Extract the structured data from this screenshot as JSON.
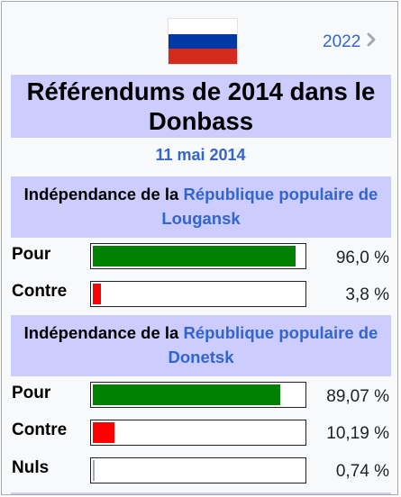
{
  "header": {
    "flag_icon": "russia-flag-icon",
    "flag_colors": [
      "#ffffff",
      "#0039a6",
      "#d52b1e"
    ],
    "next_link": "2022",
    "title": "Référendums de 2014 dans le Donbass",
    "date": "11 mai 2014"
  },
  "colors": {
    "header_bg": "#ccccff",
    "link": "#3366cc",
    "yes_bar": "#008000",
    "no_bar": "#ff0000"
  },
  "sections": [
    {
      "heading_prefix": "Indépendance de la ",
      "heading_link": "République populaire de Lougansk",
      "rows": [
        {
          "label": "Pour",
          "value": "96,0 %",
          "percent": 96.0,
          "color": "#008000"
        },
        {
          "label": "Contre",
          "value": "3,8 %",
          "percent": 3.8,
          "color": "#ff0000"
        }
      ]
    },
    {
      "heading_prefix": "Indépendance de la ",
      "heading_link": "République populaire de Donetsk",
      "rows": [
        {
          "label": "Pour",
          "value": "89,07 %",
          "percent": 89.07,
          "color": "#008000"
        },
        {
          "label": "Contre",
          "value": "10,19 %",
          "percent": 10.19,
          "color": "#ff0000"
        },
        {
          "label": "Nuls",
          "value": "0,74 %",
          "percent": 0.74,
          "color": "#a2a9b1"
        }
      ]
    }
  ]
}
